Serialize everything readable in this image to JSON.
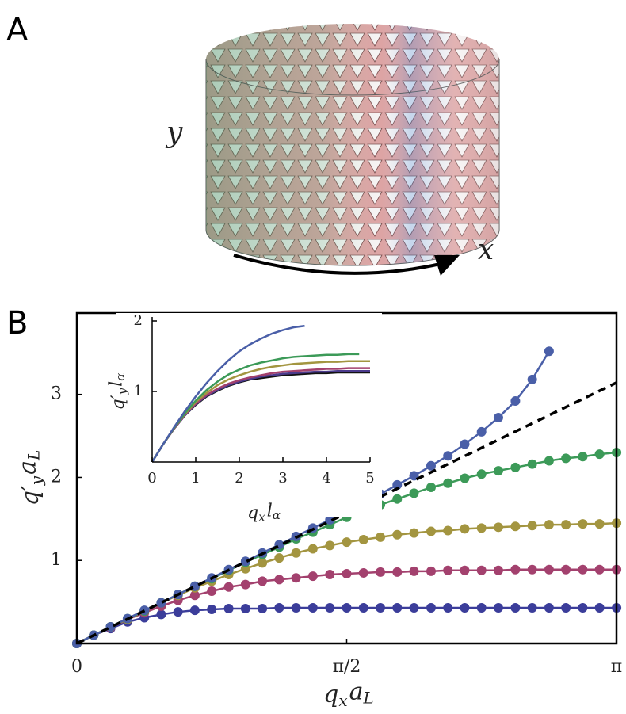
{
  "panel_a": {
    "label": "A",
    "axis_y": "y",
    "axis_x": "x"
  },
  "chart_data": [
    {
      "type": "line",
      "panel_label": "B",
      "xlabel": [
        "q",
        "x",
        "a",
        "L"
      ],
      "ylabel": [
        "q′",
        "y",
        "a",
        "L"
      ],
      "xlim": [
        0,
        3.1416
      ],
      "ylim": [
        0,
        3.98
      ],
      "xticks": [
        0,
        {
          "value": 1.5708,
          "label": "π/2"
        },
        {
          "value": 3.1416,
          "label": "π"
        }
      ],
      "yticks": [
        1,
        2,
        3
      ],
      "markers": true,
      "x": [
        0,
        0.098,
        0.196,
        0.295,
        0.393,
        0.491,
        0.589,
        0.687,
        0.785,
        0.884,
        0.982,
        1.08,
        1.178,
        1.276,
        1.374,
        1.473,
        1.571,
        1.669,
        1.767,
        1.865,
        1.963,
        2.062,
        2.16,
        2.258,
        2.356,
        2.454,
        2.553,
        2.651,
        2.749,
        2.847,
        2.945,
        3.043,
        3.142
      ],
      "series": [
        {
          "color": "#3b3d9a",
          "values": [
            0,
            0.1,
            0.18,
            0.26,
            0.31,
            0.35,
            0.38,
            0.4,
            0.41,
            0.42,
            0.42,
            0.42,
            0.43,
            0.43,
            0.43,
            0.43,
            0.43,
            0.43,
            0.43,
            0.43,
            0.43,
            0.43,
            0.43,
            0.43,
            0.43,
            0.43,
            0.43,
            0.43,
            0.43,
            0.43,
            0.43,
            0.43,
            0.43
          ]
        },
        {
          "color": "#a3416e",
          "values": [
            0,
            0.1,
            0.19,
            0.29,
            0.37,
            0.45,
            0.52,
            0.58,
            0.63,
            0.68,
            0.71,
            0.75,
            0.77,
            0.79,
            0.81,
            0.83,
            0.84,
            0.85,
            0.86,
            0.86,
            0.87,
            0.87,
            0.88,
            0.88,
            0.88,
            0.88,
            0.89,
            0.89,
            0.89,
            0.89,
            0.89,
            0.89,
            0.89
          ]
        },
        {
          "color": "#a39540",
          "values": [
            0,
            0.1,
            0.2,
            0.29,
            0.39,
            0.49,
            0.58,
            0.67,
            0.75,
            0.83,
            0.9,
            0.97,
            1.03,
            1.09,
            1.14,
            1.18,
            1.22,
            1.25,
            1.28,
            1.31,
            1.33,
            1.35,
            1.36,
            1.38,
            1.39,
            1.4,
            1.41,
            1.42,
            1.43,
            1.43,
            1.44,
            1.44,
            1.45
          ]
        },
        {
          "color": "#3c9a58",
          "values": [
            0,
            0.1,
            0.2,
            0.3,
            0.39,
            0.49,
            0.59,
            0.69,
            0.78,
            0.88,
            0.98,
            1.07,
            1.16,
            1.26,
            1.34,
            1.43,
            1.52,
            1.6,
            1.67,
            1.74,
            1.81,
            1.88,
            1.93,
            1.99,
            2.04,
            2.08,
            2.12,
            2.16,
            2.2,
            2.23,
            2.25,
            2.28,
            2.3
          ]
        },
        {
          "color": "#4a5fa8",
          "values": [
            0,
            0.1,
            0.2,
            0.3,
            0.4,
            0.49,
            0.59,
            0.69,
            0.79,
            0.89,
            0.99,
            1.09,
            1.19,
            1.29,
            1.39,
            1.49,
            1.6,
            1.7,
            1.8,
            1.91,
            2.02,
            2.14,
            2.26,
            2.4,
            2.55,
            2.72,
            2.92,
            3.18,
            3.52,
            null,
            null,
            null,
            null
          ]
        },
        {
          "color": "#000000",
          "dashed": true,
          "markers": false,
          "x": [
            0,
            3.1416
          ],
          "values": [
            0,
            3.1416
          ]
        }
      ]
    },
    {
      "type": "line",
      "xlabel": [
        "q",
        "x",
        "l",
        "α"
      ],
      "ylabel": [
        "q′",
        "y",
        "l",
        "α"
      ],
      "xlim": [
        0,
        5
      ],
      "ylim": [
        0,
        2
      ],
      "xticks": [
        0,
        1,
        2,
        3,
        4,
        5
      ],
      "yticks": [
        1,
        2
      ],
      "markers": false,
      "x": [
        0,
        0.25,
        0.5,
        0.75,
        1,
        1.25,
        1.5,
        1.75,
        2,
        2.25,
        2.5,
        2.75,
        3,
        3.25,
        3.5,
        3.75,
        4,
        4.25,
        4.5,
        4.75,
        5
      ],
      "series": [
        {
          "color": "#111111",
          "values": [
            0,
            0.25,
            0.47,
            0.66,
            0.81,
            0.93,
            1.01,
            1.08,
            1.13,
            1.17,
            1.19,
            1.21,
            1.23,
            1.24,
            1.25,
            1.26,
            1.26,
            1.27,
            1.27,
            1.27,
            1.27
          ]
        },
        {
          "color": "#4b3a8c",
          "values": [
            0,
            0.25,
            0.47,
            0.66,
            0.82,
            0.94,
            1.02,
            1.09,
            1.14,
            1.18,
            1.21,
            1.23,
            1.25,
            1.26,
            1.27,
            1.28,
            1.28,
            1.29,
            1.29,
            1.29,
            1.29
          ]
        },
        {
          "color": "#a3416e",
          "values": [
            0,
            0.25,
            0.47,
            0.67,
            0.83,
            0.95,
            1.04,
            1.11,
            1.16,
            1.2,
            1.23,
            1.26,
            1.28,
            1.29,
            1.3,
            1.31,
            1.32,
            1.32,
            1.33,
            1.33,
            1.33
          ]
        },
        {
          "color": "#a39540",
          "values": [
            0,
            0.25,
            0.48,
            0.68,
            0.85,
            0.98,
            1.09,
            1.17,
            1.23,
            1.28,
            1.32,
            1.35,
            1.37,
            1.39,
            1.4,
            1.41,
            1.42,
            1.42,
            1.43,
            1.43,
            1.43
          ]
        },
        {
          "color": "#3c9a58",
          "values": [
            0,
            0.25,
            0.48,
            0.69,
            0.87,
            1.02,
            1.14,
            1.24,
            1.31,
            1.37,
            1.41,
            1.44,
            1.47,
            1.49,
            1.5,
            1.51,
            1.52,
            1.52,
            1.53,
            1.53,
            null
          ]
        },
        {
          "color": "#4a5fa8",
          "values": [
            0,
            0.25,
            0.49,
            0.72,
            0.93,
            1.12,
            1.29,
            1.44,
            1.57,
            1.67,
            1.75,
            1.82,
            1.87,
            1.91,
            1.93,
            null,
            null,
            null,
            null,
            null,
            null
          ]
        }
      ]
    }
  ]
}
